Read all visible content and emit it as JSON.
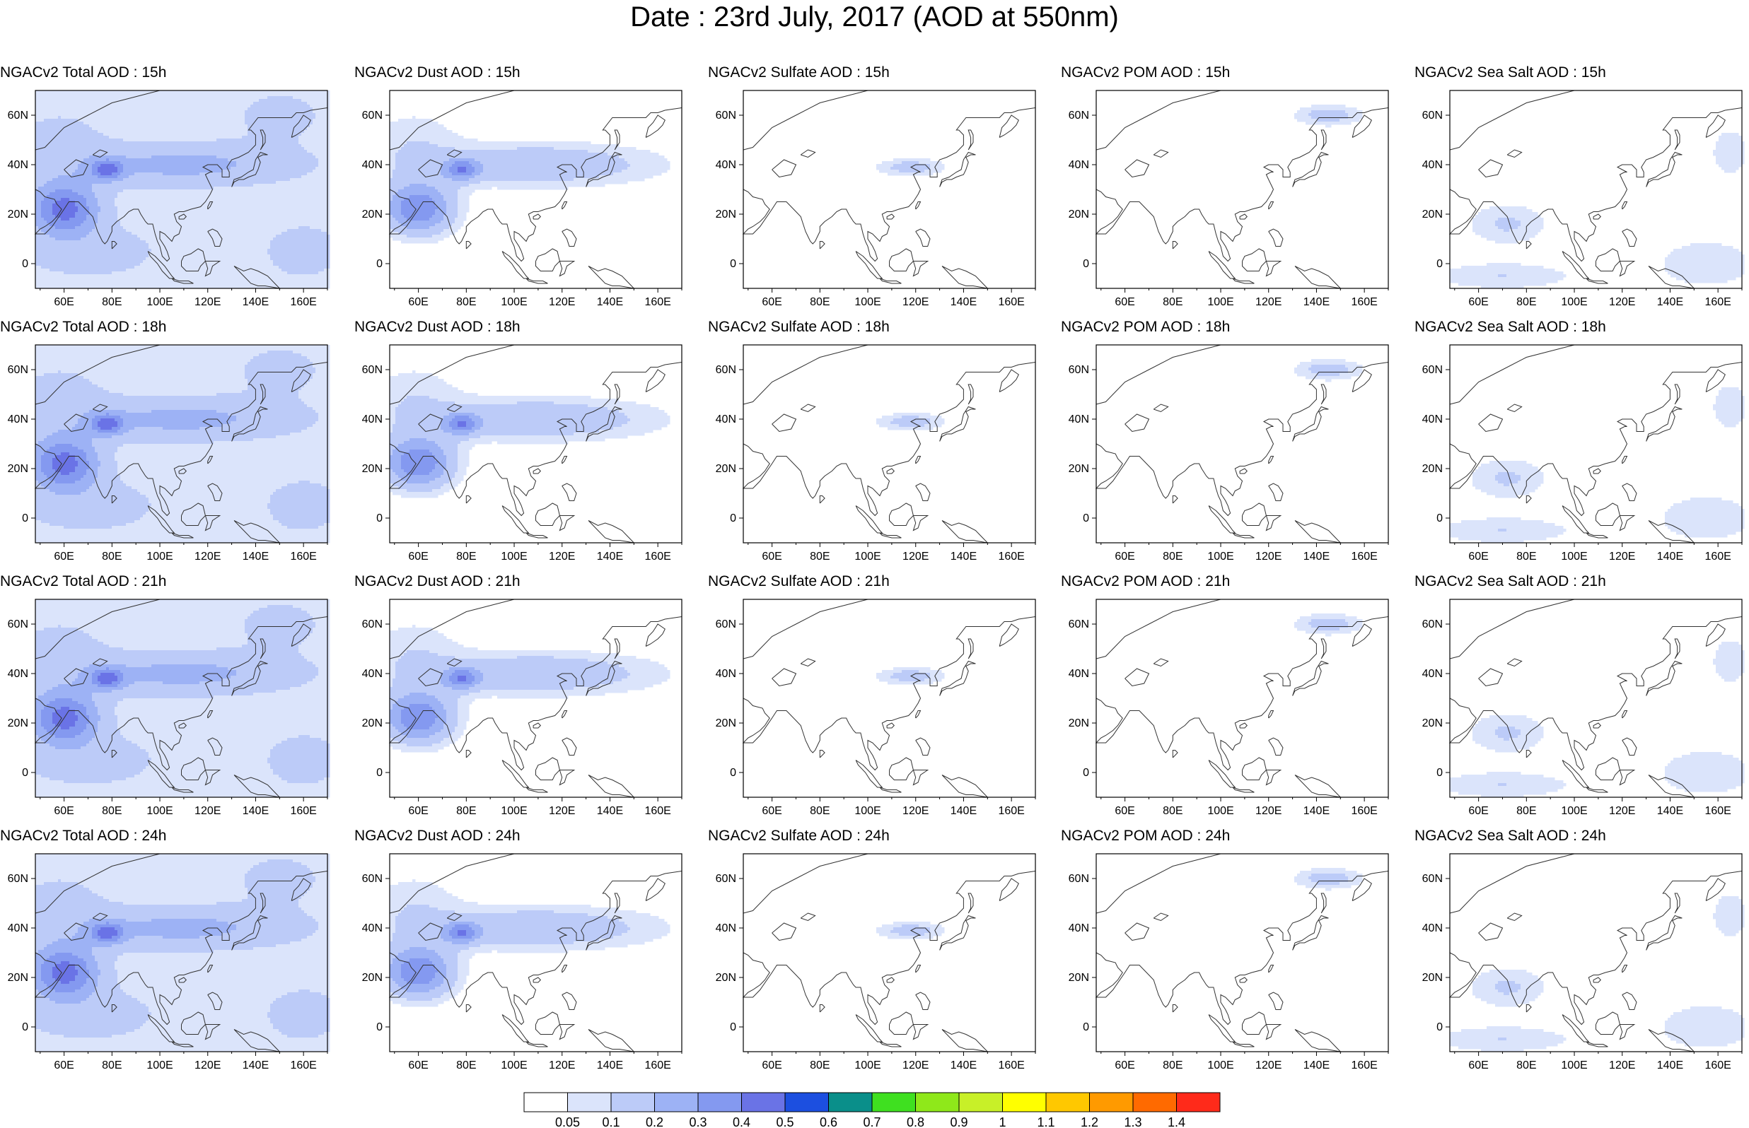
{
  "title": "Date : 23rd July, 2017 (AOD at 550nm)",
  "panels": [
    {
      "title": "NGACv2 Total AOD : 15h",
      "species": "total"
    },
    {
      "title": "NGACv2 Dust AOD : 15h",
      "species": "dust"
    },
    {
      "title": "NGACv2 Sulfate AOD : 15h",
      "species": "sulfate"
    },
    {
      "title": "NGACv2 POM AOD : 15h",
      "species": "pom"
    },
    {
      "title": "NGACv2 Sea Salt AOD : 15h",
      "species": "seasalt"
    },
    {
      "title": "NGACv2 Total AOD : 18h",
      "species": "total"
    },
    {
      "title": "NGACv2 Dust AOD : 18h",
      "species": "dust"
    },
    {
      "title": "NGACv2 Sulfate AOD : 18h",
      "species": "sulfate"
    },
    {
      "title": "NGACv2 POM AOD : 18h",
      "species": "pom"
    },
    {
      "title": "NGACv2 Sea Salt AOD : 18h",
      "species": "seasalt"
    },
    {
      "title": "NGACv2 Total AOD : 21h",
      "species": "total"
    },
    {
      "title": "NGACv2 Dust AOD : 21h",
      "species": "dust"
    },
    {
      "title": "NGACv2 Sulfate AOD : 21h",
      "species": "sulfate"
    },
    {
      "title": "NGACv2 POM AOD : 21h",
      "species": "pom"
    },
    {
      "title": "NGACv2 Sea Salt AOD : 21h",
      "species": "seasalt"
    },
    {
      "title": "NGACv2 Total AOD : 24h",
      "species": "total"
    },
    {
      "title": "NGACv2 Dust AOD : 24h",
      "species": "dust"
    },
    {
      "title": "NGACv2 Sulfate AOD : 24h",
      "species": "sulfate"
    },
    {
      "title": "NGACv2 POM AOD : 24h",
      "species": "pom"
    },
    {
      "title": "NGACv2 Sea Salt  AOD : 24h",
      "species": "seasalt"
    }
  ],
  "map": {
    "lon_range": [
      48,
      170
    ],
    "lat_range": [
      -10,
      70
    ],
    "lon_ticks": [
      60,
      80,
      100,
      120,
      140,
      160
    ],
    "lon_tick_labels": [
      "60E",
      "80E",
      "100E",
      "120E",
      "140E",
      "160E"
    ],
    "lat_ticks": [
      0,
      20,
      40,
      60
    ],
    "lat_tick_labels": [
      "0",
      "20N",
      "40N",
      "60N"
    ]
  },
  "colorbar": {
    "labels": [
      "0.05",
      "0.1",
      "0.2",
      "0.3",
      "0.4",
      "0.5",
      "0.6",
      "0.7",
      "0.8",
      "0.9",
      "1",
      "1.1",
      "1.2",
      "1.3",
      "1.4"
    ],
    "colors": [
      "#ffffff",
      "#dbe4fb",
      "#bccbf8",
      "#9db2f5",
      "#8499f0",
      "#6a73e6",
      "#1c4fe0",
      "#0a8f8a",
      "#3fe020",
      "#8fe81a",
      "#c8f028",
      "#ffff00",
      "#ffc800",
      "#ff9a00",
      "#ff6a00",
      "#ff2a1a"
    ]
  },
  "coastline_color": "#333333",
  "frame_color": "#000000"
}
